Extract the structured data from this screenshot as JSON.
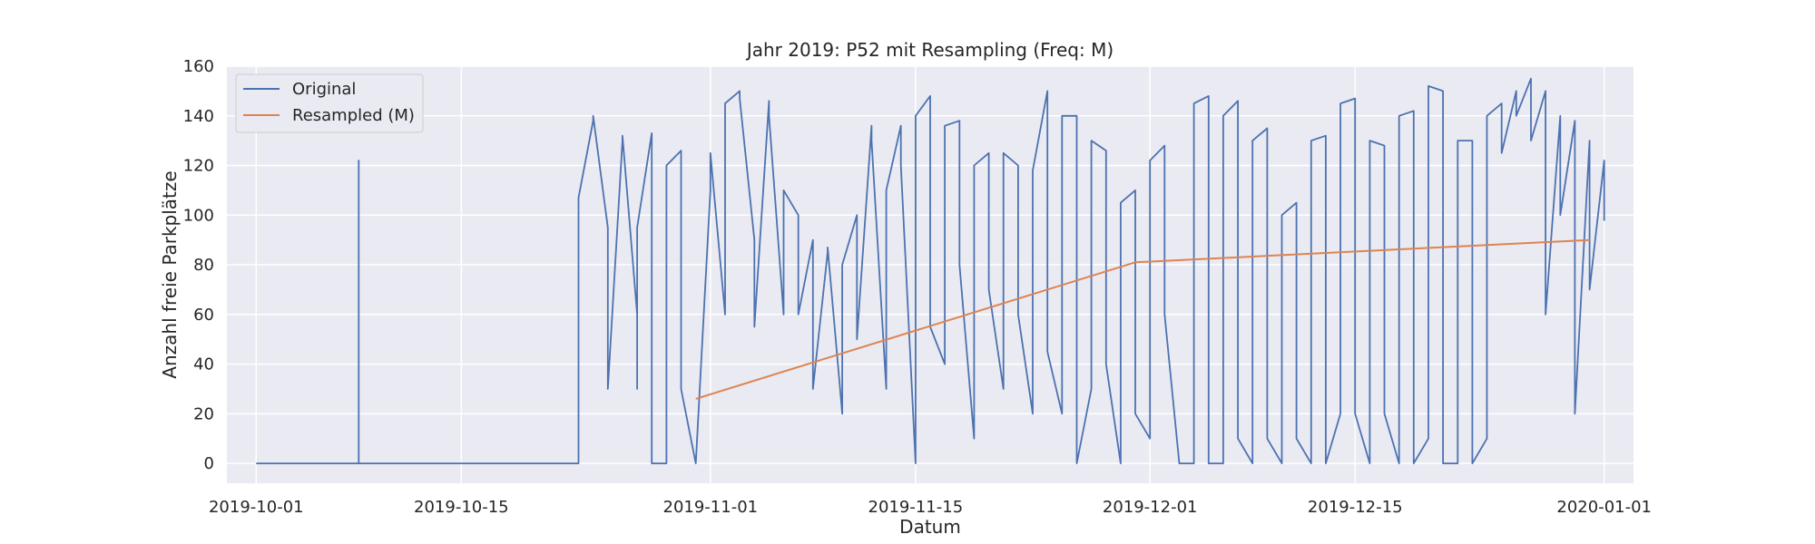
{
  "chart_data": {
    "type": "line",
    "title": "Jahr 2019: P52 mit Resampling (Freq: M)",
    "xlabel": "Datum",
    "ylabel": "Anzahl freie Parkplätze",
    "xlim": [
      "2019-09-29",
      "2020-01-03"
    ],
    "ylim": [
      -8,
      160
    ],
    "x_ticks": [
      "2019-10-01",
      "2019-10-15",
      "2019-11-01",
      "2019-11-15",
      "2019-12-01",
      "2019-12-15",
      "2020-01-01"
    ],
    "y_ticks": [
      0,
      20,
      40,
      60,
      80,
      100,
      120,
      140,
      160
    ],
    "grid": true,
    "legend": "top-left",
    "background": "#eaeaf2",
    "series": [
      {
        "name": "Original",
        "color": "#4c72b0",
        "points": [
          [
            "2019-10-01",
            0
          ],
          [
            "2019-10-08",
            0
          ],
          [
            "2019-10-08",
            122
          ],
          [
            "2019-10-08",
            0
          ],
          [
            "2019-10-23",
            0
          ],
          [
            "2019-10-23",
            85
          ],
          [
            "2019-10-23",
            107
          ],
          [
            "2019-10-24",
            138
          ],
          [
            "2019-10-24",
            140
          ],
          [
            "2019-10-25",
            95
          ],
          [
            "2019-10-25",
            45
          ],
          [
            "2019-10-25",
            30
          ],
          [
            "2019-10-26",
            130
          ],
          [
            "2019-10-26",
            132
          ],
          [
            "2019-10-27",
            60
          ],
          [
            "2019-10-27",
            30
          ],
          [
            "2019-10-27",
            95
          ],
          [
            "2019-10-28",
            133
          ],
          [
            "2019-10-28",
            0
          ],
          [
            "2019-10-29",
            0
          ],
          [
            "2019-10-29",
            120
          ],
          [
            "2019-10-30",
            126
          ],
          [
            "2019-10-30",
            30
          ],
          [
            "2019-10-31",
            0
          ],
          [
            "2019-10-31",
            0
          ],
          [
            "2019-11-01",
            110
          ],
          [
            "2019-11-01",
            125
          ],
          [
            "2019-11-02",
            60
          ],
          [
            "2019-11-02",
            145
          ],
          [
            "2019-11-03",
            150
          ],
          [
            "2019-11-03",
            147
          ],
          [
            "2019-11-04",
            90
          ],
          [
            "2019-11-04",
            55
          ],
          [
            "2019-11-05",
            146
          ],
          [
            "2019-11-05",
            140
          ],
          [
            "2019-11-06",
            60
          ],
          [
            "2019-11-06",
            110
          ],
          [
            "2019-11-07",
            100
          ],
          [
            "2019-11-07",
            60
          ],
          [
            "2019-11-08",
            90
          ],
          [
            "2019-11-08",
            30
          ],
          [
            "2019-11-09",
            85
          ],
          [
            "2019-11-09",
            87
          ],
          [
            "2019-11-10",
            20
          ],
          [
            "2019-11-10",
            80
          ],
          [
            "2019-11-11",
            100
          ],
          [
            "2019-11-11",
            50
          ],
          [
            "2019-11-12",
            136
          ],
          [
            "2019-11-12",
            130
          ],
          [
            "2019-11-13",
            30
          ],
          [
            "2019-11-13",
            110
          ],
          [
            "2019-11-14",
            136
          ],
          [
            "2019-11-14",
            120
          ],
          [
            "2019-11-15",
            0
          ],
          [
            "2019-11-15",
            140
          ],
          [
            "2019-11-16",
            148
          ],
          [
            "2019-11-16",
            55
          ],
          [
            "2019-11-17",
            40
          ],
          [
            "2019-11-17",
            136
          ],
          [
            "2019-11-18",
            138
          ],
          [
            "2019-11-18",
            80
          ],
          [
            "2019-11-19",
            10
          ],
          [
            "2019-11-19",
            120
          ],
          [
            "2019-11-20",
            125
          ],
          [
            "2019-11-20",
            70
          ],
          [
            "2019-11-21",
            30
          ],
          [
            "2019-11-21",
            125
          ],
          [
            "2019-11-22",
            120
          ],
          [
            "2019-11-22",
            60
          ],
          [
            "2019-11-23",
            20
          ],
          [
            "2019-11-23",
            118
          ],
          [
            "2019-11-24",
            150
          ],
          [
            "2019-11-24",
            45
          ],
          [
            "2019-11-25",
            20
          ],
          [
            "2019-11-25",
            140
          ],
          [
            "2019-11-26",
            140
          ],
          [
            "2019-11-26",
            0
          ],
          [
            "2019-11-27",
            30
          ],
          [
            "2019-11-27",
            130
          ],
          [
            "2019-11-28",
            126
          ],
          [
            "2019-11-28",
            40
          ],
          [
            "2019-11-29",
            0
          ],
          [
            "2019-11-29",
            105
          ],
          [
            "2019-11-30",
            110
          ],
          [
            "2019-11-30",
            20
          ],
          [
            "2019-12-01",
            10
          ],
          [
            "2019-12-01",
            122
          ],
          [
            "2019-12-02",
            128
          ],
          [
            "2019-12-02",
            60
          ],
          [
            "2019-12-03",
            0
          ],
          [
            "2019-12-03",
            0
          ],
          [
            "2019-12-04",
            0
          ],
          [
            "2019-12-04",
            145
          ],
          [
            "2019-12-05",
            148
          ],
          [
            "2019-12-05",
            0
          ],
          [
            "2019-12-06",
            0
          ],
          [
            "2019-12-06",
            140
          ],
          [
            "2019-12-07",
            146
          ],
          [
            "2019-12-07",
            10
          ],
          [
            "2019-12-08",
            0
          ],
          [
            "2019-12-08",
            130
          ],
          [
            "2019-12-09",
            135
          ],
          [
            "2019-12-09",
            10
          ],
          [
            "2019-12-10",
            0
          ],
          [
            "2019-12-10",
            100
          ],
          [
            "2019-12-11",
            105
          ],
          [
            "2019-12-11",
            10
          ],
          [
            "2019-12-12",
            0
          ],
          [
            "2019-12-12",
            130
          ],
          [
            "2019-12-13",
            132
          ],
          [
            "2019-12-13",
            0
          ],
          [
            "2019-12-14",
            20
          ],
          [
            "2019-12-14",
            145
          ],
          [
            "2019-12-15",
            147
          ],
          [
            "2019-12-15",
            20
          ],
          [
            "2019-12-16",
            0
          ],
          [
            "2019-12-16",
            130
          ],
          [
            "2019-12-17",
            128
          ],
          [
            "2019-12-17",
            20
          ],
          [
            "2019-12-18",
            0
          ],
          [
            "2019-12-18",
            140
          ],
          [
            "2019-12-19",
            142
          ],
          [
            "2019-12-19",
            0
          ],
          [
            "2019-12-20",
            10
          ],
          [
            "2019-12-20",
            152
          ],
          [
            "2019-12-21",
            150
          ],
          [
            "2019-12-21",
            0
          ],
          [
            "2019-12-22",
            0
          ],
          [
            "2019-12-22",
            130
          ],
          [
            "2019-12-23",
            130
          ],
          [
            "2019-12-23",
            0
          ],
          [
            "2019-12-24",
            10
          ],
          [
            "2019-12-24",
            140
          ],
          [
            "2019-12-25",
            145
          ],
          [
            "2019-12-25",
            125
          ],
          [
            "2019-12-26",
            150
          ],
          [
            "2019-12-26",
            140
          ],
          [
            "2019-12-27",
            155
          ],
          [
            "2019-12-27",
            130
          ],
          [
            "2019-12-28",
            150
          ],
          [
            "2019-12-28",
            60
          ],
          [
            "2019-12-29",
            140
          ],
          [
            "2019-12-29",
            100
          ],
          [
            "2019-12-30",
            138
          ],
          [
            "2019-12-30",
            20
          ],
          [
            "2019-12-31",
            130
          ],
          [
            "2019-12-31",
            70
          ],
          [
            "2020-01-01",
            122
          ],
          [
            "2020-01-01",
            98
          ],
          [
            "2020-01-01",
            100
          ]
        ]
      },
      {
        "name": "Resampled (M)",
        "color": "#dd8452",
        "points": [
          [
            "2019-10-31",
            26
          ],
          [
            "2019-11-30",
            81
          ],
          [
            "2019-12-31",
            90
          ]
        ]
      }
    ]
  }
}
